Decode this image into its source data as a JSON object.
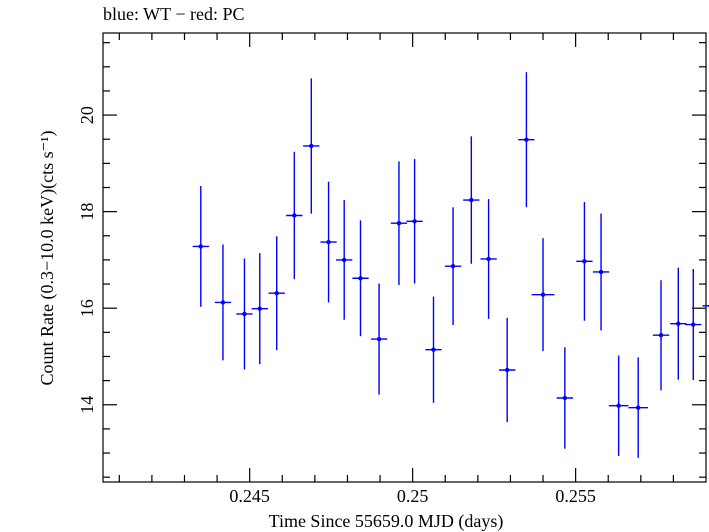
{
  "header_text": "blue: WT − red: PC",
  "colors": {
    "wt": "#0000ff",
    "pc": "#ff0000",
    "axis": "#000000",
    "background": "#ffffff"
  },
  "chart_data": {
    "type": "scatter",
    "title": "blue: WT − red: PC",
    "xlabel": "Time Since 55659.0 MJD (days)",
    "ylabel": "Count Rate (0.3−10.0 keV)(cts s⁻¹)",
    "xlim": [
      0.2405,
      0.259
    ],
    "ylim": [
      12.4,
      21.7
    ],
    "x_ticks": [
      0.245,
      0.25,
      0.255
    ],
    "x_tick_labels": [
      "0.245",
      "0.25",
      "0.255"
    ],
    "y_ticks": [
      14,
      16,
      18,
      20
    ],
    "y_tick_labels": [
      "14",
      "16",
      "18",
      "20"
    ],
    "grid": false,
    "legend": "none",
    "series": [
      {
        "name": "WT",
        "color": "#0000ff",
        "points": [
          {
            "x": 0.2435,
            "y": 17.28,
            "xerr": 0.00025,
            "yerr": 1.25
          },
          {
            "x": 0.24418,
            "y": 16.12,
            "xerr": 0.00025,
            "yerr": 1.2
          },
          {
            "x": 0.24484,
            "y": 15.88,
            "xerr": 0.00025,
            "yerr": 1.15
          },
          {
            "x": 0.24531,
            "y": 15.99,
            "xerr": 0.00025,
            "yerr": 1.15
          },
          {
            "x": 0.24583,
            "y": 16.31,
            "xerr": 0.00025,
            "yerr": 1.18
          },
          {
            "x": 0.24637,
            "y": 17.92,
            "xerr": 0.00025,
            "yerr": 1.32
          },
          {
            "x": 0.24689,
            "y": 19.36,
            "xerr": 0.00025,
            "yerr": 1.4
          },
          {
            "x": 0.24742,
            "y": 17.37,
            "xerr": 0.00025,
            "yerr": 1.25
          },
          {
            "x": 0.2479,
            "y": 17.0,
            "xerr": 0.00025,
            "yerr": 1.24
          },
          {
            "x": 0.2484,
            "y": 16.62,
            "xerr": 0.00025,
            "yerr": 1.2
          },
          {
            "x": 0.24897,
            "y": 15.36,
            "xerr": 0.00025,
            "yerr": 1.15
          },
          {
            "x": 0.24958,
            "y": 17.76,
            "xerr": 0.00025,
            "yerr": 1.28
          },
          {
            "x": 0.25006,
            "y": 17.8,
            "xerr": 0.00025,
            "yerr": 1.29
          },
          {
            "x": 0.25064,
            "y": 15.14,
            "xerr": 0.00025,
            "yerr": 1.1
          },
          {
            "x": 0.25124,
            "y": 16.87,
            "xerr": 0.00025,
            "yerr": 1.22
          },
          {
            "x": 0.2518,
            "y": 18.24,
            "xerr": 0.00025,
            "yerr": 1.32
          },
          {
            "x": 0.25233,
            "y": 17.02,
            "xerr": 0.00025,
            "yerr": 1.24
          },
          {
            "x": 0.2529,
            "y": 14.72,
            "xerr": 0.00025,
            "yerr": 1.08
          },
          {
            "x": 0.25349,
            "y": 19.49,
            "xerr": 0.00025,
            "yerr": 1.4
          },
          {
            "x": 0.254,
            "y": 16.28,
            "xerr": 0.00035,
            "yerr": 1.17
          },
          {
            "x": 0.25467,
            "y": 14.14,
            "xerr": 0.00025,
            "yerr": 1.05
          },
          {
            "x": 0.25527,
            "y": 16.97,
            "xerr": 0.00025,
            "yerr": 1.23
          },
          {
            "x": 0.25578,
            "y": 16.75,
            "xerr": 0.00025,
            "yerr": 1.21
          },
          {
            "x": 0.25632,
            "y": 13.98,
            "xerr": 0.0003,
            "yerr": 1.04
          },
          {
            "x": 0.25692,
            "y": 13.94,
            "xerr": 0.0003,
            "yerr": 1.04
          },
          {
            "x": 0.25762,
            "y": 15.44,
            "xerr": 0.00025,
            "yerr": 1.14
          },
          {
            "x": 0.25815,
            "y": 15.68,
            "xerr": 0.00025,
            "yerr": 1.16
          },
          {
            "x": 0.25861,
            "y": 15.66,
            "xerr": 0.00025,
            "yerr": 1.15
          },
          {
            "x": 0.25914,
            "y": 16.05,
            "xerr": 0.00025,
            "yerr": 1.18
          }
        ]
      }
    ]
  }
}
